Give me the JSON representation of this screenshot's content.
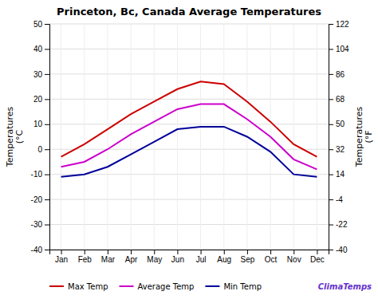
{
  "chart_data": {
    "type": "line",
    "title": "Princeton, Bc, Canada Average Temperatures",
    "categories": [
      "Jan",
      "Feb",
      "Mar",
      "Apr",
      "May",
      "Jun",
      "Jul",
      "Aug",
      "Sep",
      "Oct",
      "Nov",
      "Dec"
    ],
    "series": [
      {
        "name": "Max Temp",
        "color": "#cc0000",
        "values": [
          -3,
          2,
          8,
          14,
          19,
          24,
          27,
          26,
          19,
          11,
          2,
          -3
        ]
      },
      {
        "name": "Average Temp",
        "color": "#cc00cc",
        "values": [
          -7,
          -5,
          0,
          6,
          11,
          16,
          18,
          18,
          12,
          5,
          -4,
          -8
        ]
      },
      {
        "name": "Min Temp",
        "color": "#000099",
        "values": [
          -11,
          -10,
          -7,
          -2,
          3,
          8,
          9,
          9,
          5,
          -1,
          -10,
          -11
        ]
      }
    ],
    "ylim": [
      -40,
      50
    ],
    "yticks": [
      -40,
      -30,
      -20,
      -10,
      0,
      10,
      20,
      30,
      40,
      50
    ],
    "y2lim": [
      -40,
      122
    ],
    "y2ticks": [
      -40,
      -22,
      -4,
      14,
      32,
      50,
      68,
      86,
      104,
      122
    ],
    "y_label": "Temperatures\n(°C",
    "y2_label": "Temperatures\n(°F",
    "grid": true,
    "legend": "bottom",
    "annotations": [
      {
        "text": "ClimaTemps",
        "color": "#6633cc"
      }
    ]
  }
}
